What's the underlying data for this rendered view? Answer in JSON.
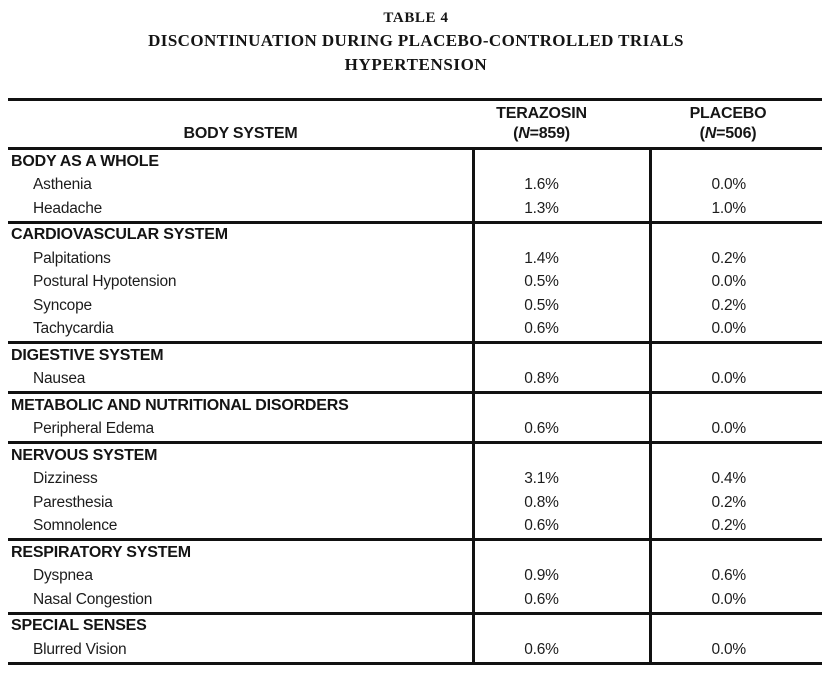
{
  "page": {
    "background": "#ffffff",
    "text_color": "#1a1a1a",
    "rule_color": "#111111"
  },
  "title": {
    "table_number": "TABLE 4",
    "heading": "DISCONTINUATION DURING PLACEBO-CONTROLLED TRIALS",
    "condition": "HYPERTENSION"
  },
  "table": {
    "header": {
      "body_system": "BODY SYSTEM",
      "terazosin": {
        "name": "TERAZOSIN",
        "n_open": "(",
        "n_symbol": "N",
        "n_rest": "=859)"
      },
      "placebo": {
        "name": "PLACEBO",
        "n_open": "(",
        "n_symbol": "N",
        "n_rest": "=506)"
      }
    },
    "sections": [
      {
        "name": "BODY AS A WHOLE",
        "rows": [
          {
            "label": "Asthenia",
            "terazosin": "1.6%",
            "placebo": "0.0%"
          },
          {
            "label": "Headache",
            "terazosin": "1.3%",
            "placebo": "1.0%"
          }
        ]
      },
      {
        "name": "CARDIOVASCULAR SYSTEM",
        "rows": [
          {
            "label": "Palpitations",
            "terazosin": "1.4%",
            "placebo": "0.2%"
          },
          {
            "label": "Postural Hypotension",
            "terazosin": "0.5%",
            "placebo": "0.0%"
          },
          {
            "label": "Syncope",
            "terazosin": "0.5%",
            "placebo": "0.2%"
          },
          {
            "label": "Tachycardia",
            "terazosin": "0.6%",
            "placebo": "0.0%"
          }
        ]
      },
      {
        "name": "DIGESTIVE SYSTEM",
        "rows": [
          {
            "label": "Nausea",
            "terazosin": "0.8%",
            "placebo": "0.0%"
          }
        ]
      },
      {
        "name": "METABOLIC AND NUTRITIONAL DISORDERS",
        "rows": [
          {
            "label": "Peripheral Edema",
            "terazosin": "0.6%",
            "placebo": "0.0%"
          }
        ]
      },
      {
        "name": "NERVOUS SYSTEM",
        "rows": [
          {
            "label": "Dizziness",
            "terazosin": "3.1%",
            "placebo": "0.4%"
          },
          {
            "label": "Paresthesia",
            "terazosin": "0.8%",
            "placebo": "0.2%"
          },
          {
            "label": "Somnolence",
            "terazosin": "0.6%",
            "placebo": "0.2%"
          }
        ]
      },
      {
        "name": "RESPIRATORY SYSTEM",
        "rows": [
          {
            "label": "Dyspnea",
            "terazosin": "0.9%",
            "placebo": "0.6%"
          },
          {
            "label": "Nasal Congestion",
            "terazosin": "0.6%",
            "placebo": "0.0%"
          }
        ]
      },
      {
        "name": "SPECIAL SENSES",
        "rows": [
          {
            "label": "Blurred Vision",
            "terazosin": "0.6%",
            "placebo": "0.0%"
          }
        ]
      }
    ]
  }
}
